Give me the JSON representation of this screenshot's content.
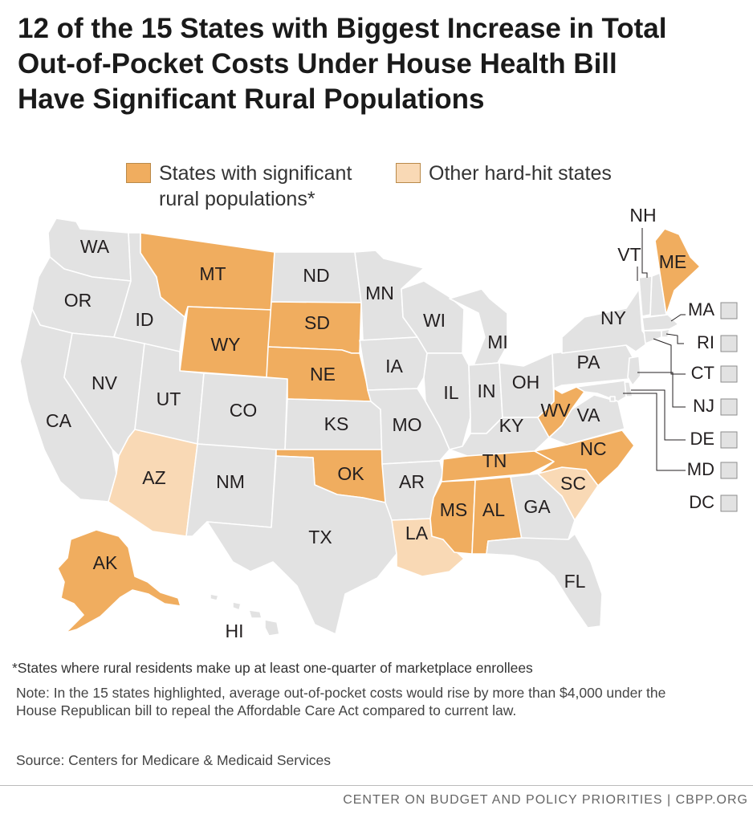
{
  "title_lines": [
    "12 of the 15 States with Biggest Increase in Total",
    "Out-of-Pocket Costs Under House Health Bill",
    "Have Significant Rural Populations"
  ],
  "legend": {
    "rural": {
      "lines": [
        "States with significant",
        "rural populations*"
      ],
      "color": "#f0ad5f"
    },
    "other": {
      "lines": [
        "Other hard-hit states"
      ],
      "color": "#f9d9b5"
    }
  },
  "colors": {
    "default": "#e2e2e2",
    "rural": "#f0ad5f",
    "other": "#f9d9b5",
    "border": "#ffffff"
  },
  "states": {
    "WA": {
      "label": "WA",
      "category": "default"
    },
    "OR": {
      "label": "OR",
      "category": "default"
    },
    "CA": {
      "label": "CA",
      "category": "default"
    },
    "ID": {
      "label": "ID",
      "category": "default"
    },
    "NV": {
      "label": "NV",
      "category": "default"
    },
    "MT": {
      "label": "MT",
      "category": "rural"
    },
    "WY": {
      "label": "WY",
      "category": "rural"
    },
    "UT": {
      "label": "UT",
      "category": "default"
    },
    "AZ": {
      "label": "AZ",
      "category": "other"
    },
    "CO": {
      "label": "CO",
      "category": "default"
    },
    "NM": {
      "label": "NM",
      "category": "default"
    },
    "ND": {
      "label": "ND",
      "category": "default"
    },
    "SD": {
      "label": "SD",
      "category": "rural"
    },
    "NE": {
      "label": "NE",
      "category": "rural"
    },
    "KS": {
      "label": "KS",
      "category": "default"
    },
    "OK": {
      "label": "OK",
      "category": "rural"
    },
    "TX": {
      "label": "TX",
      "category": "default"
    },
    "MN": {
      "label": "MN",
      "category": "default"
    },
    "IA": {
      "label": "IA",
      "category": "default"
    },
    "MO": {
      "label": "MO",
      "category": "default"
    },
    "AR": {
      "label": "AR",
      "category": "default"
    },
    "LA": {
      "label": "LA",
      "category": "other"
    },
    "WI": {
      "label": "WI",
      "category": "default"
    },
    "IL": {
      "label": "IL",
      "category": "default"
    },
    "MI": {
      "label": "MI",
      "category": "default"
    },
    "IN": {
      "label": "IN",
      "category": "default"
    },
    "OH": {
      "label": "OH",
      "category": "default"
    },
    "KY": {
      "label": "KY",
      "category": "default"
    },
    "TN": {
      "label": "TN",
      "category": "rural"
    },
    "MS": {
      "label": "MS",
      "category": "rural"
    },
    "AL": {
      "label": "AL",
      "category": "rural"
    },
    "GA": {
      "label": "GA",
      "category": "default"
    },
    "FL": {
      "label": "FL",
      "category": "default"
    },
    "SC": {
      "label": "SC",
      "category": "other"
    },
    "NC": {
      "label": "NC",
      "category": "rural"
    },
    "VA": {
      "label": "VA",
      "category": "default"
    },
    "WV": {
      "label": "WV",
      "category": "rural"
    },
    "PA": {
      "label": "PA",
      "category": "default"
    },
    "NY": {
      "label": "NY",
      "category": "default"
    },
    "VT": {
      "label": "VT",
      "category": "default"
    },
    "NH": {
      "label": "NH",
      "category": "default"
    },
    "ME": {
      "label": "ME",
      "category": "rural"
    },
    "MA": {
      "label": "MA",
      "category": "default"
    },
    "RI": {
      "label": "RI",
      "category": "default"
    },
    "CT": {
      "label": "CT",
      "category": "default"
    },
    "NJ": {
      "label": "NJ",
      "category": "default"
    },
    "DE": {
      "label": "DE",
      "category": "default"
    },
    "MD": {
      "label": "MD",
      "category": "default"
    },
    "DC": {
      "label": "DC",
      "category": "default"
    },
    "AK": {
      "label": "AK",
      "category": "rural"
    },
    "HI": {
      "label": "HI",
      "category": "default"
    }
  },
  "footnote": "*States where rural residents make up at least one-quarter of marketplace enrollees",
  "note": "Note:  In the 15 states highlighted, average out-of-pocket costs would rise by more than $4,000 under the House Republican bill to repeal the Affordable Care Act compared to current law.",
  "source": "Source: Centers for Medicare & Medicaid Services",
  "credit": "CENTER ON BUDGET AND POLICY PRIORITIES | CBPP.ORG"
}
